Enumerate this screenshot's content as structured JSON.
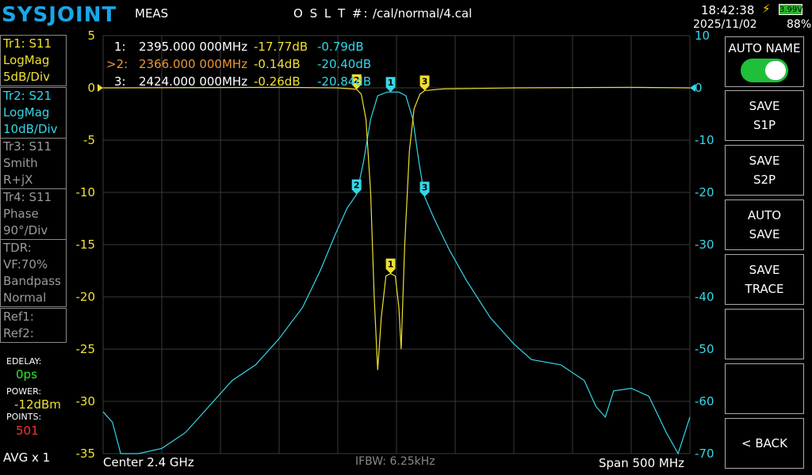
{
  "header": {
    "logo": "SYSJOINT",
    "mode": "MEAS",
    "cal_label": "O S L T #:",
    "cal_file": "/cal/normal/4.cal",
    "time": "18:42:38",
    "date": "2025/11/02",
    "battery_voltage": "3.99V",
    "battery_percent": "88%"
  },
  "traces": [
    {
      "lines": [
        "Tr1:  S11",
        "LogMag",
        "5dB/Div"
      ],
      "color": "#f0e030"
    },
    {
      "lines": [
        "Tr2:  S21",
        "LogMag",
        "10dB/Div"
      ],
      "color": "#34d7e8"
    },
    {
      "lines": [
        "Tr3:  S11",
        "Smith",
        "R+jX"
      ],
      "color": "#9a9a9a"
    },
    {
      "lines": [
        "Tr4:  S11",
        "Phase",
        "90°/Div"
      ],
      "color": "#9a9a9a"
    },
    {
      "lines": [
        "TDR:",
        "VF:70%",
        "Bandpass",
        "Normal"
      ],
      "color": "#9a9a9a"
    },
    {
      "lines": [
        "Ref1:",
        "Ref2:"
      ],
      "color": "#9a9a9a"
    }
  ],
  "settings": {
    "edelay_label": "EDELAY:",
    "edelay_value": "0ps",
    "power_label": "POWER:",
    "power_value": "-12dBm",
    "points_label": "POINTS:",
    "points_value": "501",
    "avg": "AVG x 1"
  },
  "right_buttons": [
    {
      "lines": [
        "AUTO NAME"
      ]
    },
    {
      "lines": [
        "SAVE",
        "S1P"
      ]
    },
    {
      "lines": [
        "SAVE",
        "S2P"
      ]
    },
    {
      "lines": [
        "AUTO",
        "SAVE"
      ]
    },
    {
      "lines": [
        "SAVE",
        "TRACE"
      ]
    },
    {
      "lines": []
    },
    {
      "lines": []
    },
    {
      "lines": [
        "< BACK"
      ]
    }
  ],
  "toggle_auto_name": true,
  "footer": {
    "center": "Center  2.4 GHz",
    "ifbw": "IFBW: 6.25kHz",
    "span": "Span   500 MHz"
  },
  "markers": [
    {
      "id": "1:",
      "freq": "2395.000 000MHz",
      "s11": "-17.77dB",
      "s21": "-0.79dB",
      "active": false
    },
    {
      "id": ">2:",
      "freq": "2366.000 000MHz",
      "s11": "-0.14dB",
      "s21": "-20.40dB",
      "active": true
    },
    {
      "id": "3:",
      "freq": "2424.000 000MHz",
      "s11": "-0.26dB",
      "s21": "-20.84dB",
      "active": false
    }
  ],
  "chart_data": {
    "type": "line",
    "x_range_mhz": [
      2150,
      2650
    ],
    "left_axis": {
      "ticks": [
        5,
        0,
        -5,
        -10,
        -15,
        -20,
        -25,
        -30,
        -35
      ],
      "ylim": [
        -35,
        5
      ],
      "unit": "dB"
    },
    "right_axis": {
      "ticks": [
        10,
        0,
        -10,
        -20,
        -30,
        -40,
        -50,
        -60,
        -70
      ],
      "ylim": [
        -70,
        10
      ],
      "unit": "dB"
    },
    "grid": true,
    "series": [
      {
        "name": "Tr1: S11",
        "color": "#f0e030",
        "points": [
          [
            2150,
            0
          ],
          [
            2300,
            0.05
          ],
          [
            2350,
            0
          ],
          [
            2362,
            -0.1
          ],
          [
            2366,
            -0.14
          ],
          [
            2370,
            -0.6
          ],
          [
            2374,
            -3
          ],
          [
            2378,
            -10
          ],
          [
            2381,
            -20
          ],
          [
            2384,
            -27
          ],
          [
            2387,
            -22
          ],
          [
            2391,
            -18
          ],
          [
            2395,
            -17.77
          ],
          [
            2399,
            -18
          ],
          [
            2402,
            -21
          ],
          [
            2404,
            -25
          ],
          [
            2407,
            -15
          ],
          [
            2411,
            -6
          ],
          [
            2415,
            -2
          ],
          [
            2420,
            -0.6
          ],
          [
            2424,
            -0.26
          ],
          [
            2440,
            -0.1
          ],
          [
            2500,
            0
          ],
          [
            2600,
            0.05
          ],
          [
            2650,
            0
          ]
        ]
      },
      {
        "name": "Tr2: S21",
        "color": "#34d7e8",
        "points": [
          [
            2150,
            -62
          ],
          [
            2158,
            -64
          ],
          [
            2165,
            -70
          ],
          [
            2180,
            -70
          ],
          [
            2200,
            -69
          ],
          [
            2220,
            -66
          ],
          [
            2240,
            -61
          ],
          [
            2260,
            -56
          ],
          [
            2280,
            -53
          ],
          [
            2300,
            -48
          ],
          [
            2320,
            -42
          ],
          [
            2335,
            -35
          ],
          [
            2348,
            -28
          ],
          [
            2358,
            -23
          ],
          [
            2366,
            -20.4
          ],
          [
            2372,
            -14
          ],
          [
            2378,
            -6
          ],
          [
            2384,
            -1.5
          ],
          [
            2392,
            -0.8
          ],
          [
            2395,
            -0.79
          ],
          [
            2402,
            -0.8
          ],
          [
            2408,
            -1.5
          ],
          [
            2414,
            -6
          ],
          [
            2419,
            -14
          ],
          [
            2424,
            -20.84
          ],
          [
            2432,
            -25
          ],
          [
            2445,
            -31
          ],
          [
            2460,
            -37
          ],
          [
            2480,
            -44
          ],
          [
            2500,
            -49
          ],
          [
            2515,
            -52
          ],
          [
            2540,
            -53
          ],
          [
            2560,
            -56
          ],
          [
            2570,
            -61
          ],
          [
            2578,
            -63
          ],
          [
            2585,
            -58
          ],
          [
            2600,
            -57.5
          ],
          [
            2615,
            -59
          ],
          [
            2630,
            -66
          ],
          [
            2640,
            -70
          ],
          [
            2650,
            -63
          ]
        ]
      }
    ],
    "marker_points": [
      {
        "label": "1",
        "x": 2395,
        "s11": -17.77,
        "s21": -0.79
      },
      {
        "label": "2",
        "x": 2366,
        "s11": -0.14,
        "s21": -20.4
      },
      {
        "label": "3",
        "x": 2424,
        "s11": -0.26,
        "s21": -20.84
      }
    ]
  }
}
